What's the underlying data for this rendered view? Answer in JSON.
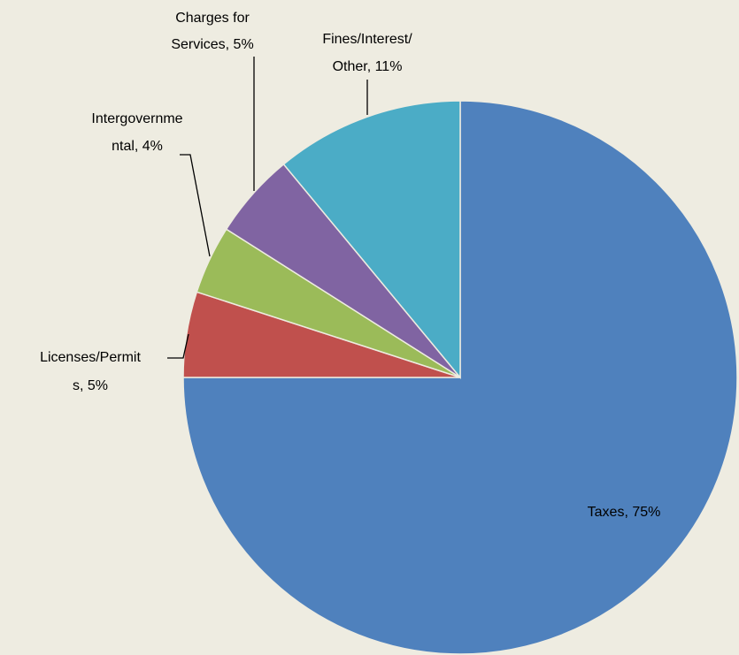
{
  "chart_data": {
    "type": "pie",
    "values": [
      75,
      5,
      4,
      5,
      11
    ],
    "value_labels": [
      [
        "Taxes, 75%"
      ],
      [
        "Licenses/Permit",
        "s, 5%"
      ],
      [
        "Intergovernme",
        "ntal, 4%"
      ],
      [
        "Charges for",
        "Services, 5%"
      ],
      [
        "Fines/Interest/",
        "Other, 11%"
      ]
    ],
    "colors": [
      "#4f81bd",
      "#c0504d",
      "#9bbb59",
      "#8064a2",
      "#4bacc6"
    ]
  }
}
